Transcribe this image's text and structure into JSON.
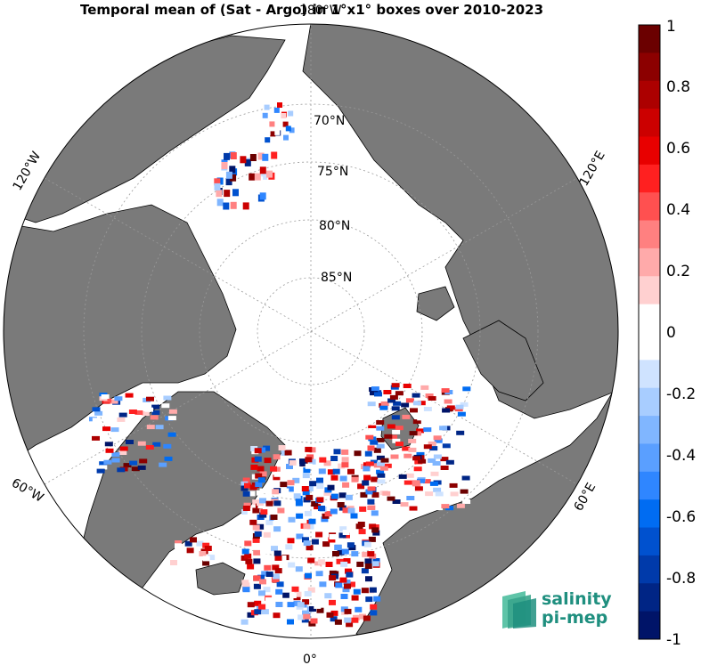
{
  "title": "Temporal mean of (Sat - Argo) in 1°x1° boxes over 2010-2023",
  "colorbar": {
    "ticks": [
      "1",
      "0.8",
      "0.6",
      "0.4",
      "0.2",
      "0",
      "-0.2",
      "-0.4",
      "-0.6",
      "-0.8",
      "-1"
    ],
    "colors": [
      "#6b0000",
      "#8c0000",
      "#ac0000",
      "#cc0000",
      "#e80000",
      "#ff2020",
      "#ff5050",
      "#ff8080",
      "#ffaaaa",
      "#ffd0d0",
      "#ffffff",
      "#ffffff",
      "#cfe3ff",
      "#a8cdff",
      "#80b6ff",
      "#5a9fff",
      "#2f86ff",
      "#006cf2",
      "#0051cf",
      "#003aaa",
      "#002585",
      "#001468"
    ]
  },
  "map": {
    "projection": "north-polar-stereographic",
    "lat_labels": [
      "70°N",
      "75°N",
      "80°N",
      "85°N"
    ],
    "lon_labels": {
      "top": "180°W",
      "left_upper": "120°W",
      "right_upper": "120°E",
      "left_lower": "60°W",
      "right_lower": "60°E",
      "bottom": "0°"
    },
    "colors": {
      "land": "#7a7a7a",
      "ocean": "#ffffff",
      "coast": "#000000",
      "grid": "#9a9a9a"
    }
  },
  "logo": {
    "line1": "salinity",
    "line2": "pi-mep",
    "color": "#1f8f7f"
  }
}
